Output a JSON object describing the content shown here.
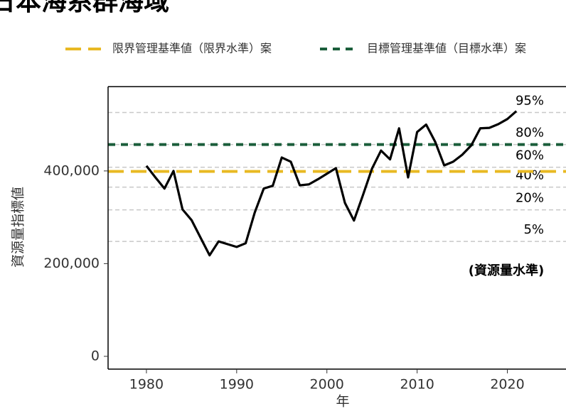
{
  "chart_data": {
    "type": "line",
    "title": "日本海系群海域",
    "x_label": "年",
    "y_label": "資源量指標値",
    "annotation": "(資源量水準)",
    "x": [
      1980,
      1981,
      1982,
      1983,
      1984,
      1985,
      1986,
      1987,
      1988,
      1989,
      1990,
      1991,
      1992,
      1993,
      1994,
      1995,
      1996,
      1997,
      1998,
      1999,
      2000,
      2001,
      2002,
      2003,
      2004,
      2005,
      2006,
      2007,
      2008,
      2009,
      2010,
      2011,
      2012,
      2013,
      2014,
      2015,
      2016,
      2017,
      2018,
      2019,
      2020,
      2021
    ],
    "series": [
      {
        "name": "資源量指標値",
        "color": "#000000",
        "values": [
          411000,
          386000,
          362000,
          400000,
          317000,
          294000,
          256000,
          218000,
          248000,
          242000,
          236000,
          244000,
          310000,
          362000,
          368000,
          429000,
          420000,
          369000,
          371000,
          382000,
          394000,
          406000,
          331000,
          293000,
          348000,
          405000,
          444000,
          425000,
          492000,
          386000,
          484000,
          500000,
          463000,
          412000,
          420000,
          435000,
          455000,
          492000,
          493000,
          501000,
          512000,
          529000
        ]
      }
    ],
    "reference_lines": [
      {
        "name": "限界管理基準値（限界水準）案",
        "value": 399000,
        "color": "#e8b923",
        "dash": "long"
      },
      {
        "name": "目標管理基準値（目標水準）案",
        "value": 457000,
        "color": "#1b5e3b",
        "dash": "short"
      }
    ],
    "levels": [
      {
        "label": "95%",
        "value": 526000
      },
      {
        "label": "80%",
        "value": 457000
      },
      {
        "label": "60%",
        "value": 408000
      },
      {
        "label": "40%",
        "value": 365000
      },
      {
        "label": "20%",
        "value": 316000
      },
      {
        "label": "5%",
        "value": 248000
      }
    ],
    "xlim": [
      1975.75,
      2026.5
    ],
    "xticks": [
      1980,
      1990,
      2000,
      2010,
      2020
    ],
    "ylim": [
      -27600,
      582000
    ],
    "yticks": [
      0,
      {
        "value": 200000,
        "label": "200,000"
      },
      {
        "value": 400000,
        "label": "400,000"
      }
    ],
    "grid": false
  }
}
